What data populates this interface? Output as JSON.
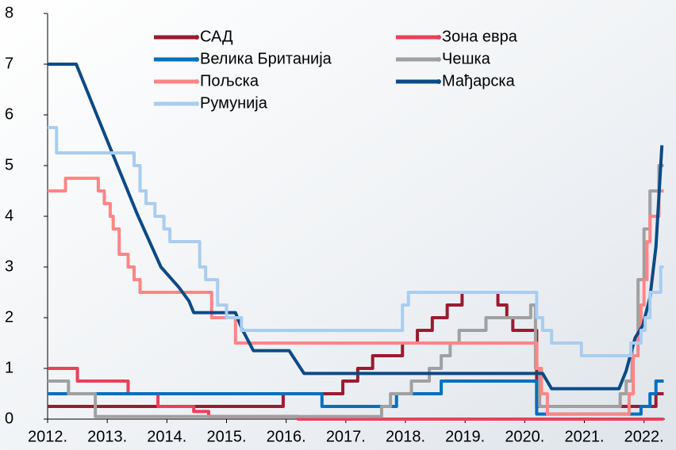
{
  "chart_data": {
    "type": "line",
    "xlim": [
      2012,
      2022.35
    ],
    "xticks": [
      {
        "value": 2012,
        "label": "2012."
      },
      {
        "value": 2013,
        "label": "2013."
      },
      {
        "value": 2014,
        "label": "2014."
      },
      {
        "value": 2015,
        "label": "2015."
      },
      {
        "value": 2016,
        "label": "2016."
      },
      {
        "value": 2017,
        "label": "2017."
      },
      {
        "value": 2018,
        "label": "2018."
      },
      {
        "value": 2019,
        "label": "2019."
      },
      {
        "value": 2020,
        "label": "2020."
      },
      {
        "value": 2021,
        "label": "2021."
      },
      {
        "value": 2022,
        "label": "2022."
      }
    ],
    "ylim": [
      0,
      8
    ],
    "yticks": [
      0,
      1,
      2,
      3,
      4,
      5,
      6,
      7,
      8
    ],
    "legend": "upper center",
    "series": [
      {
        "name": "САД",
        "color": "#9b1b30",
        "step": true,
        "x": [
          2012,
          2015.95,
          2016.95,
          2017.2,
          2017.45,
          2017.95,
          2018.2,
          2018.45,
          2018.7,
          2018.95,
          2019.55,
          2019.7,
          2019.8,
          2020.2,
          2022.2,
          2022.33
        ],
        "values": [
          0.25,
          0.5,
          0.75,
          1,
          1.25,
          1.5,
          1.75,
          2,
          2.25,
          2.5,
          2.25,
          2,
          1.75,
          0.25,
          0.5,
          0.5
        ]
      },
      {
        "name": "Зона евра",
        "color": "#e8415a",
        "step": true,
        "x": [
          2012,
          2012.5,
          2013.35,
          2013.85,
          2014.45,
          2014.7,
          2016.2,
          2022.33
        ],
        "values": [
          1,
          0.75,
          0.5,
          0.25,
          0.15,
          0.05,
          0,
          0
        ]
      },
      {
        "name": "Велика Британија",
        "color": "#0070c0",
        "step": true,
        "x": [
          2012,
          2016.6,
          2017.85,
          2018.6,
          2020.2,
          2021.95,
          2022.1,
          2022.2,
          2022.33
        ],
        "values": [
          0.5,
          0.25,
          0.5,
          0.75,
          0.1,
          0.25,
          0.5,
          0.75,
          0.75
        ]
      },
      {
        "name": "Чешка",
        "color": "#a0a0a0",
        "step": true,
        "x": [
          2012,
          2012.35,
          2012.8,
          2017.6,
          2017.75,
          2018.1,
          2018.4,
          2018.6,
          2018.75,
          2018.9,
          2019.35,
          2020.1,
          2020.18,
          2020.25,
          2021.6,
          2021.7,
          2021.8,
          2021.9,
          2022.0,
          2022.1,
          2022.25,
          2022.33
        ],
        "values": [
          0.75,
          0.5,
          0.05,
          0.25,
          0.5,
          0.75,
          1,
          1.25,
          1.5,
          1.75,
          2,
          2.25,
          1,
          0.25,
          0.5,
          0.75,
          1.5,
          2.75,
          3.75,
          4.5,
          5,
          5
        ]
      },
      {
        "name": "Пољска",
        "color": "#ff8585",
        "step": true,
        "x": [
          2012,
          2012.3,
          2012.85,
          2012.95,
          2013.05,
          2013.1,
          2013.2,
          2013.35,
          2013.45,
          2013.55,
          2014.75,
          2015.15,
          2020.2,
          2020.28,
          2020.38,
          2021.75,
          2021.82,
          2021.9,
          2021.95,
          2022.0,
          2022.05,
          2022.1,
          2022.25,
          2022.33
        ],
        "values": [
          4.5,
          4.75,
          4.5,
          4.25,
          4,
          3.75,
          3.25,
          3,
          2.75,
          2.5,
          2,
          1.5,
          1,
          0.5,
          0.1,
          0.5,
          1.25,
          1.75,
          2.25,
          2.75,
          3.5,
          4,
          4.5,
          4.5
        ]
      },
      {
        "name": "Мађарска",
        "color": "#0b4a86",
        "step": false,
        "x": [
          2012,
          2012.48,
          2013.17,
          2013.5,
          2013.9,
          2014.2,
          2014.37,
          2014.45,
          2015.15,
          2015.25,
          2015.45,
          2016.05,
          2016.3,
          2020.2,
          2020.3,
          2020.45,
          2021.58,
          2021.7,
          2021.85,
          2021.98,
          2022.1,
          2022.2,
          2022.3
        ],
        "values": [
          7,
          7,
          5,
          4.05,
          3,
          2.6,
          2.33,
          2.1,
          2.1,
          1.8,
          1.35,
          1.35,
          0.9,
          0.9,
          0.9,
          0.6,
          0.6,
          0.95,
          1.6,
          1.85,
          2.4,
          3.4,
          5.4
        ]
      },
      {
        "name": "Румунија",
        "color": "#a9cdef",
        "step": true,
        "x": [
          2012,
          2012.15,
          2013.45,
          2013.55,
          2013.65,
          2013.8,
          2013.95,
          2014.05,
          2014.55,
          2014.65,
          2014.85,
          2015.0,
          2015.25,
          2017.95,
          2018.05,
          2020.2,
          2020.3,
          2020.45,
          2020.95,
          2021.78,
          2021.95,
          2022.02,
          2022.1,
          2022.28,
          2022.33
        ],
        "values": [
          5.75,
          5.25,
          5,
          4.5,
          4.25,
          4,
          3.75,
          3.5,
          3,
          2.75,
          2.25,
          2,
          1.75,
          2.25,
          2.5,
          2,
          1.75,
          1.5,
          1.25,
          1.5,
          1.75,
          2,
          2.5,
          3,
          3
        ]
      }
    ]
  }
}
